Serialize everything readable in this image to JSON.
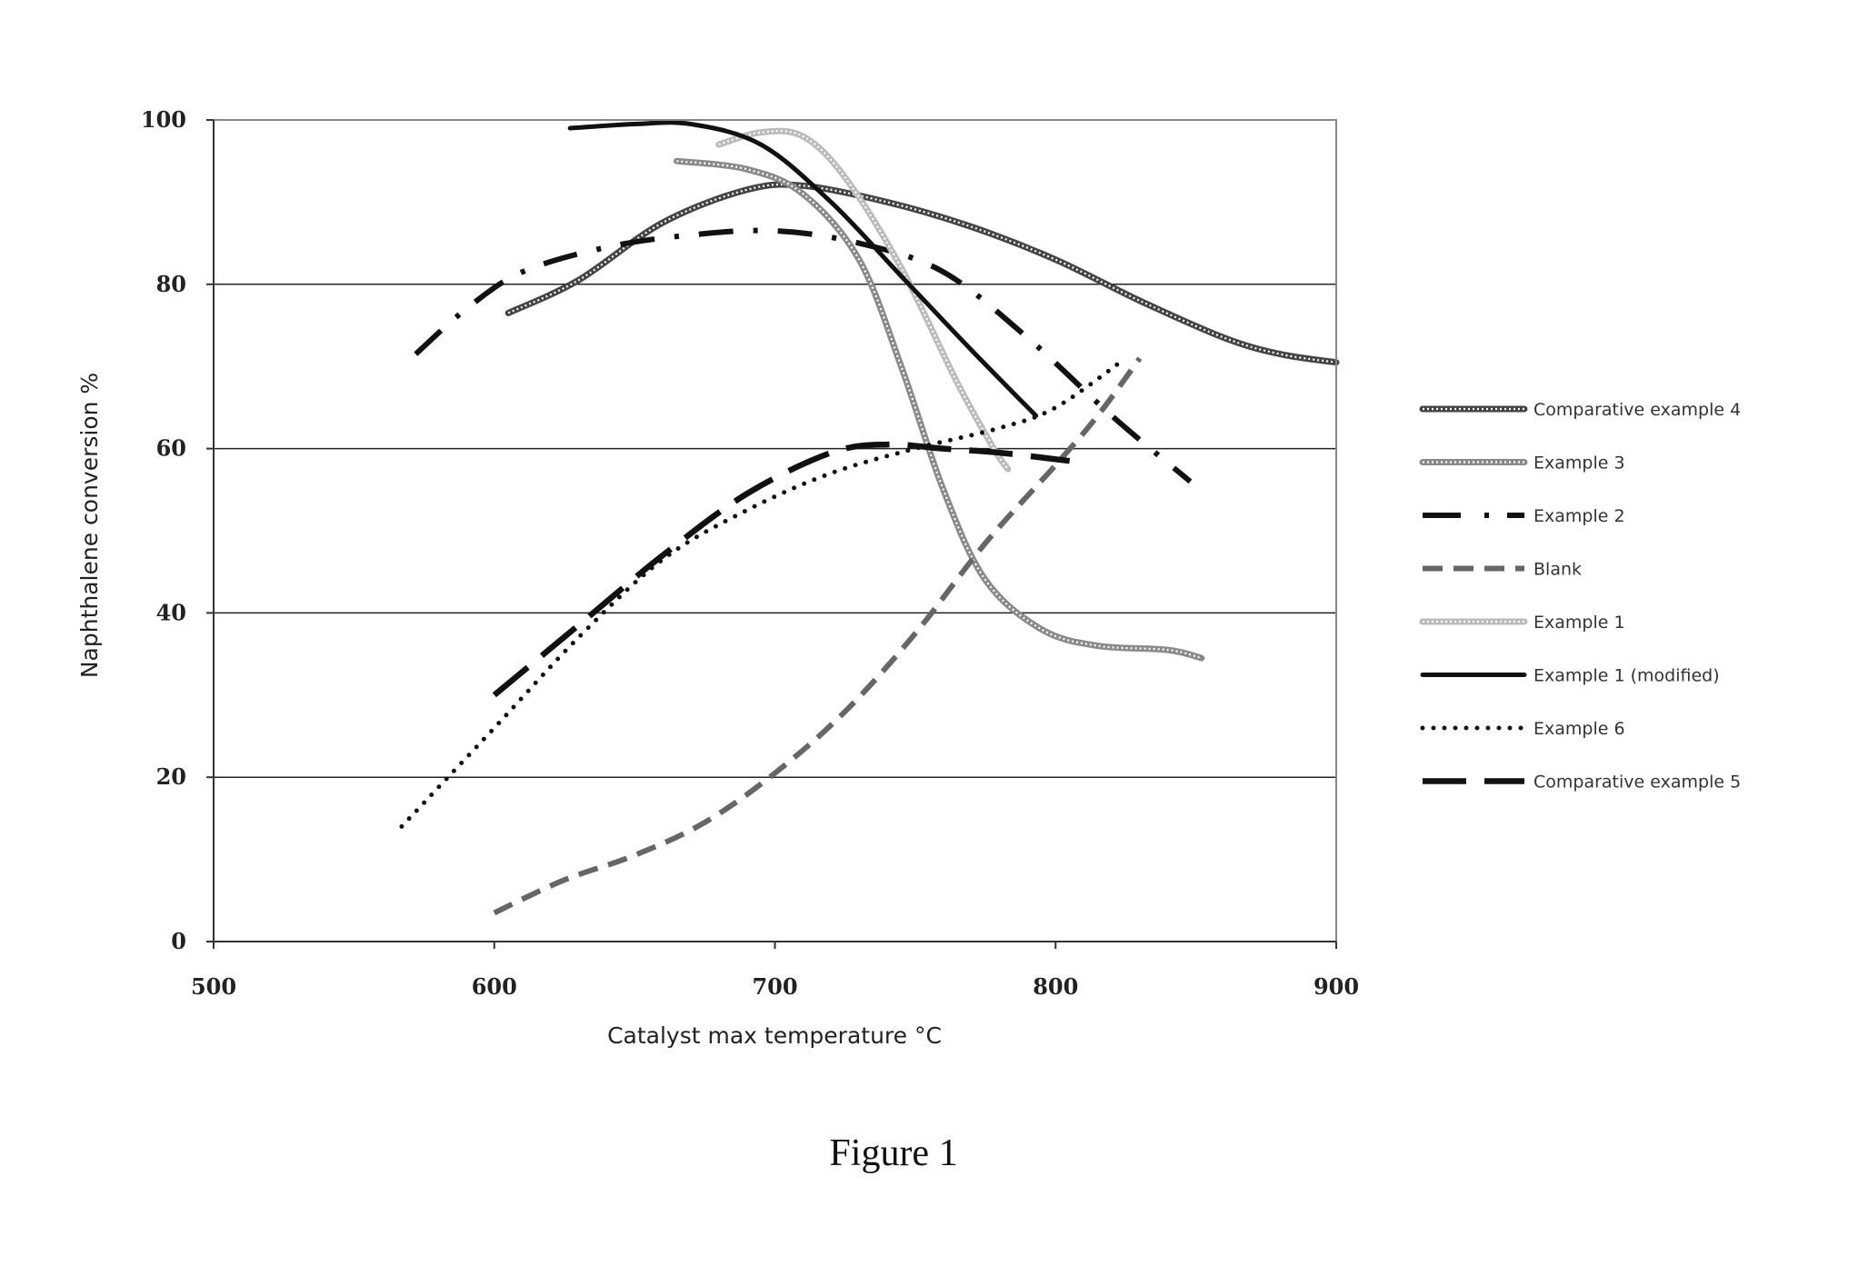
{
  "figure_caption": "Figure 1",
  "chart_data": {
    "type": "line",
    "title": "",
    "xlabel": "Catalyst max temperature °C",
    "ylabel": "Naphthalene conversion %",
    "xlim": [
      500,
      900
    ],
    "ylim": [
      0,
      100
    ],
    "x_ticks": [
      500,
      600,
      700,
      800,
      900
    ],
    "y_ticks": [
      0,
      20,
      40,
      60,
      80,
      100
    ],
    "grid": "horizontal",
    "legend_position": "right",
    "series": [
      {
        "name": "Comparative example 4",
        "color": "#444444",
        "style": "double-line",
        "points": [
          [
            605,
            76.5
          ],
          [
            630,
            80.5
          ],
          [
            660,
            87.5
          ],
          [
            690,
            91.5
          ],
          [
            710,
            92
          ],
          [
            740,
            90
          ],
          [
            770,
            87
          ],
          [
            800,
            83
          ],
          [
            830,
            78
          ],
          [
            860,
            73.5
          ],
          [
            880,
            71.5
          ],
          [
            900,
            70.5
          ]
        ]
      },
      {
        "name": "Example 3",
        "color": "#8a8a8a",
        "style": "double-line",
        "points": [
          [
            665,
            95
          ],
          [
            690,
            94
          ],
          [
            710,
            91
          ],
          [
            730,
            83
          ],
          [
            745,
            70
          ],
          [
            760,
            55
          ],
          [
            775,
            44
          ],
          [
            795,
            38
          ],
          [
            815,
            36
          ],
          [
            840,
            35.5
          ],
          [
            852,
            34.5
          ]
        ]
      },
      {
        "name": "Example 2",
        "color": "#111111",
        "style": "dash-dot",
        "points": [
          [
            572,
            71.5
          ],
          [
            590,
            77
          ],
          [
            610,
            81.5
          ],
          [
            640,
            84.5
          ],
          [
            670,
            86
          ],
          [
            700,
            86.5
          ],
          [
            730,
            85
          ],
          [
            760,
            81.5
          ],
          [
            790,
            73.5
          ],
          [
            820,
            64
          ],
          [
            848,
            56
          ]
        ]
      },
      {
        "name": "Blank",
        "color": "#666666",
        "style": "dashed",
        "points": [
          [
            600,
            3.5
          ],
          [
            625,
            7.5
          ],
          [
            650,
            10.5
          ],
          [
            675,
            14.5
          ],
          [
            700,
            20.5
          ],
          [
            725,
            28
          ],
          [
            750,
            37.5
          ],
          [
            775,
            48.5
          ],
          [
            800,
            58
          ],
          [
            815,
            64
          ],
          [
            830,
            71
          ]
        ]
      },
      {
        "name": "Example 1",
        "color": "#bbbbbb",
        "style": "double-line",
        "points": [
          [
            680,
            97
          ],
          [
            695,
            98.5
          ],
          [
            710,
            98
          ],
          [
            725,
            93
          ],
          [
            745,
            82
          ],
          [
            765,
            68
          ],
          [
            778,
            60
          ],
          [
            783,
            57.5
          ]
        ]
      },
      {
        "name": "Example 1 (modified)",
        "color": "#111111",
        "style": "solid",
        "points": [
          [
            627,
            99
          ],
          [
            650,
            99.5
          ],
          [
            670,
            99.5
          ],
          [
            695,
            97
          ],
          [
            720,
            90
          ],
          [
            745,
            81
          ],
          [
            770,
            72
          ],
          [
            793,
            64
          ]
        ]
      },
      {
        "name": "Example 6",
        "color": "#111111",
        "style": "dotted",
        "points": [
          [
            567,
            14
          ],
          [
            600,
            26
          ],
          [
            630,
            37
          ],
          [
            660,
            46.5
          ],
          [
            690,
            52.5
          ],
          [
            720,
            57
          ],
          [
            750,
            60
          ],
          [
            780,
            62.5
          ],
          [
            800,
            65
          ],
          [
            825,
            71
          ]
        ]
      },
      {
        "name": "Comparative example 5",
        "color": "#111111",
        "style": "long-dash",
        "points": [
          [
            600,
            30
          ],
          [
            630,
            38.5
          ],
          [
            660,
            47
          ],
          [
            690,
            54.5
          ],
          [
            720,
            59.5
          ],
          [
            740,
            60.5
          ],
          [
            760,
            60
          ],
          [
            780,
            59.5
          ],
          [
            805,
            58.5
          ]
        ]
      }
    ]
  }
}
